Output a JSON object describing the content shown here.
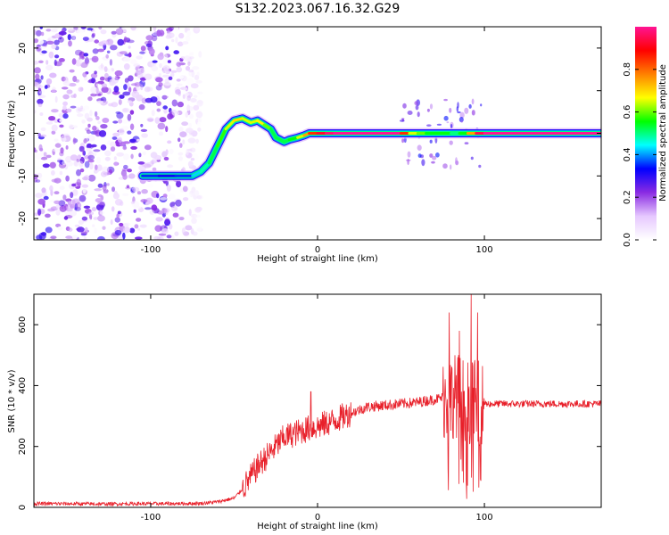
{
  "figure_title": "S132.2023.067.16.32.G29",
  "colors": {
    "snr_line": "#e8202a",
    "axis": "#000000",
    "spectral_ridge_core": "#e01030"
  },
  "chart_data": [
    {
      "type": "heatmap",
      "title": "S132.2023.067.16.32.G29",
      "xlabel": "Height of straight line (km)",
      "ylabel": "Frequency (Hz)",
      "xlim": [
        -170,
        170
      ],
      "ylim": [
        -25,
        25
      ],
      "x_ticks": [
        -100,
        0,
        100
      ],
      "y_ticks": [
        -20,
        -10,
        0,
        10,
        20
      ],
      "grid": false,
      "colorbar": {
        "label": "Normalized spectral amplitude",
        "range": [
          0,
          1
        ],
        "ticks": [
          0.0,
          0.2,
          0.4,
          0.6,
          0.8
        ],
        "colormap": [
          "#ffffff",
          "#e6c8ff",
          "#8a2be2",
          "#0000ff",
          "#00ffff",
          "#00ff00",
          "#ffff00",
          "#ff8000",
          "#ff0000",
          "#ff1493"
        ]
      },
      "noise_region": {
        "x": [
          -170,
          -70
        ],
        "y": [
          -25,
          25
        ],
        "amplitude": [
          0.0,
          0.3
        ]
      },
      "ridge": {
        "x": [
          -105,
          -95,
          -85,
          -75,
          -70,
          -65,
          -60,
          -55,
          -50,
          -45,
          -40,
          -36,
          -32,
          -28,
          -25,
          -20,
          -17,
          -12,
          -8,
          -5,
          0,
          5,
          10,
          30,
          50,
          55,
          60,
          65,
          70,
          75,
          80,
          85,
          90,
          95,
          100,
          140,
          170
        ],
        "frequency": [
          -10,
          -10,
          -10,
          -10,
          -9,
          -7,
          -3,
          1,
          3,
          3.5,
          2.5,
          3,
          2,
          1,
          -1,
          -2,
          -1.5,
          -1,
          -0.5,
          0,
          0,
          0,
          0,
          0,
          0,
          0,
          0,
          0,
          0,
          0,
          0,
          0,
          0,
          0,
          0,
          0,
          0
        ],
        "amplitude": [
          0.35,
          0.35,
          0.3,
          0.4,
          0.45,
          0.5,
          0.55,
          0.6,
          0.7,
          0.7,
          0.6,
          0.7,
          0.65,
          0.55,
          0.5,
          0.55,
          0.5,
          0.6,
          0.7,
          0.8,
          0.9,
          0.95,
          1.0,
          1.0,
          1.0,
          0.7,
          0.6,
          0.6,
          0.5,
          0.6,
          0.5,
          0.5,
          0.6,
          0.9,
          1.0,
          1.0,
          1.0
        ]
      }
    },
    {
      "type": "line",
      "xlabel": "Height of straight line (km)",
      "ylabel": "SNR (10 * v/v)",
      "xlim": [
        -170,
        170
      ],
      "ylim": [
        0,
        700
      ],
      "x_ticks": [
        -100,
        0,
        100
      ],
      "y_ticks": [
        0,
        200,
        400,
        600
      ],
      "grid": false,
      "series": [
        {
          "x": [
            -170,
            -150,
            -130,
            -110,
            -90,
            -70,
            -60,
            -50,
            -45,
            -40,
            -35,
            -30,
            -25,
            -20,
            -15,
            -10,
            -5,
            0,
            10,
            20,
            30,
            40,
            50,
            60,
            65,
            70,
            75,
            80,
            85,
            90,
            95,
            100,
            110,
            130,
            150,
            170
          ],
          "values": [
            12,
            12,
            11,
            12,
            12,
            13,
            18,
            30,
            60,
            100,
            140,
            170,
            200,
            230,
            240,
            250,
            260,
            265,
            285,
            310,
            330,
            335,
            340,
            345,
            350,
            355,
            360,
            365,
            370,
            350,
            345,
            340,
            340,
            340,
            340,
            340
          ]
        }
      ],
      "annotations": {
        "spikes": [
          {
            "x": -4,
            "y": 380
          },
          {
            "x": 79,
            "y": 640
          },
          {
            "x": 85,
            "y": 580
          },
          {
            "x": 92,
            "y": 700
          },
          {
            "x": 96,
            "y": 640
          }
        ]
      }
    }
  ]
}
